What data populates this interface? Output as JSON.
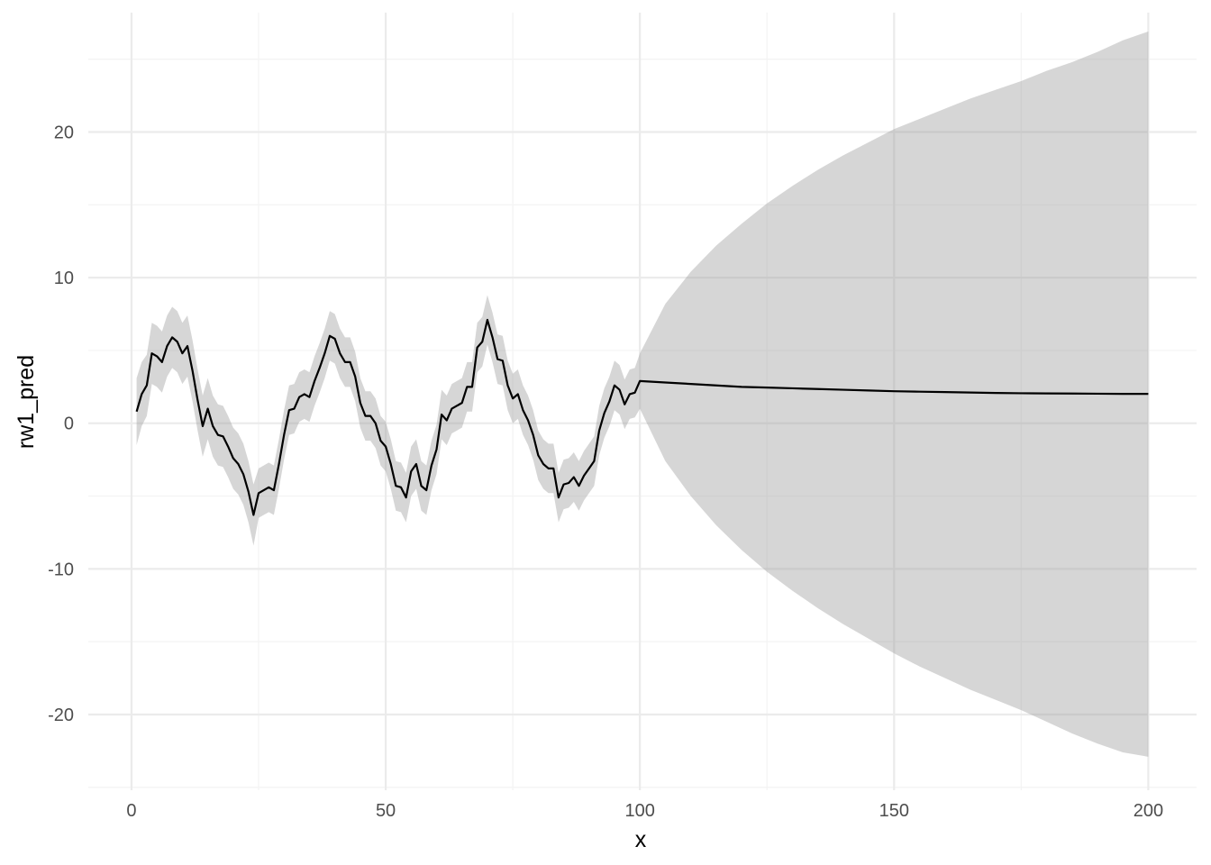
{
  "chart_data": {
    "type": "line",
    "title": "",
    "xlabel": "x",
    "ylabel": "rw1_pred",
    "xlim": [
      -8.5,
      209.5
    ],
    "ylim": [
      -25.2,
      28.2
    ],
    "xticks": [
      0,
      50,
      100,
      150,
      200
    ],
    "xtick_labels": [
      "0",
      "50",
      "100",
      "150",
      "200"
    ],
    "yticks": [
      -20,
      -10,
      0,
      10,
      20
    ],
    "ytick_labels": [
      "-20",
      "-10",
      "0",
      "10",
      "20"
    ],
    "grid": true,
    "legend": "none",
    "colors": {
      "line": "#000000",
      "ribbon": "#999999",
      "grid_major": "#ebebeb",
      "grid_minor": "#f3f3f3",
      "tick_text": "#4d4d4d"
    },
    "series": [
      {
        "x": [
          1,
          2,
          3,
          4,
          5,
          6,
          7,
          8,
          9,
          10,
          11,
          12,
          13,
          14,
          15,
          16,
          17,
          18,
          19,
          20,
          21,
          22,
          23,
          24,
          25,
          26,
          27,
          28,
          29,
          30,
          31,
          32,
          33,
          34,
          35,
          36,
          37,
          38,
          39,
          40,
          41,
          42,
          43,
          44,
          45,
          46,
          47,
          48,
          49,
          50,
          51,
          52,
          53,
          54,
          55,
          56,
          57,
          58,
          59,
          60,
          61,
          62,
          63,
          64,
          65,
          66,
          67,
          68,
          69,
          70,
          71,
          72,
          73,
          74,
          75,
          76,
          77,
          78,
          79,
          80,
          81,
          82,
          83,
          84,
          85,
          86,
          87,
          88,
          89,
          90,
          91,
          92,
          93,
          94,
          95,
          96,
          97,
          98,
          99,
          100,
          105,
          110,
          115,
          120,
          125,
          130,
          135,
          140,
          145,
          150,
          155,
          160,
          165,
          170,
          175,
          180,
          185,
          190,
          195,
          200
        ],
        "y": [
          0.8,
          2.0,
          2.6,
          4.8,
          4.6,
          4.2,
          5.3,
          5.9,
          5.6,
          4.8,
          5.3,
          3.6,
          1.6,
          -0.2,
          1.0,
          -0.2,
          -0.8,
          -0.9,
          -1.6,
          -2.4,
          -2.8,
          -3.5,
          -4.7,
          -6.3,
          -4.8,
          -4.6,
          -4.4,
          -4.6,
          -2.8,
          -0.8,
          0.9,
          1.0,
          1.8,
          2.0,
          1.8,
          2.9,
          3.8,
          4.8,
          6.0,
          5.8,
          4.8,
          4.2,
          4.2,
          3.2,
          1.4,
          0.5,
          0.5,
          0.0,
          -1.2,
          -1.6,
          -2.8,
          -4.3,
          -4.4,
          -5.1,
          -3.3,
          -2.8,
          -4.3,
          -4.6,
          -2.9,
          -1.8,
          0.6,
          0.2,
          1.0,
          1.2,
          1.4,
          2.5,
          2.5,
          5.2,
          5.6,
          7.1,
          5.9,
          4.4,
          4.3,
          2.6,
          1.7,
          2.0,
          0.9,
          0.2,
          -0.8,
          -2.2,
          -2.8,
          -3.1,
          -3.1,
          -5.1,
          -4.2,
          -4.1,
          -3.7,
          -4.3,
          -3.6,
          -3.1,
          -2.6,
          -0.5,
          0.7,
          1.5,
          2.6,
          2.3,
          1.3,
          2.0,
          2.1,
          2.9,
          2.8,
          2.7,
          2.6,
          2.5,
          2.45,
          2.4,
          2.35,
          2.3,
          2.25,
          2.2,
          2.17,
          2.14,
          2.11,
          2.08,
          2.06,
          2.05,
          2.04,
          2.03,
          2.02,
          2.02
        ],
        "lower": [
          -1.5,
          -0.2,
          0.5,
          2.7,
          2.5,
          2.1,
          3.2,
          3.8,
          3.5,
          2.7,
          3.2,
          1.5,
          -0.5,
          -2.3,
          -1.1,
          -2.3,
          -2.9,
          -3.0,
          -3.7,
          -4.5,
          -4.9,
          -5.6,
          -6.8,
          -8.4,
          -6.5,
          -6.3,
          -6.1,
          -6.3,
          -4.5,
          -2.5,
          -0.8,
          -0.7,
          0.1,
          0.3,
          0.1,
          1.2,
          2.1,
          3.1,
          4.3,
          4.1,
          3.1,
          2.5,
          2.5,
          1.5,
          -0.3,
          -1.2,
          -1.2,
          -1.7,
          -2.9,
          -3.3,
          -4.5,
          -6.0,
          -6.1,
          -6.8,
          -5.0,
          -4.5,
          -6.0,
          -6.3,
          -4.6,
          -3.5,
          -1.1,
          -1.5,
          -0.7,
          -0.5,
          -0.3,
          0.8,
          0.8,
          3.5,
          3.9,
          5.4,
          4.2,
          2.7,
          2.6,
          0.9,
          0.0,
          0.3,
          -0.8,
          -1.5,
          -2.5,
          -3.9,
          -4.5,
          -4.8,
          -4.8,
          -6.8,
          -5.9,
          -5.8,
          -5.4,
          -6.0,
          -5.3,
          -4.8,
          -4.3,
          -2.2,
          -1.0,
          -0.2,
          0.9,
          0.6,
          -0.4,
          0.3,
          0.4,
          1.0,
          -2.6,
          -5.0,
          -7.0,
          -8.7,
          -10.2,
          -11.5,
          -12.7,
          -13.8,
          -14.8,
          -15.8,
          -16.7,
          -17.5,
          -18.3,
          -19.0,
          -19.7,
          -20.5,
          -21.3,
          -22.0,
          -22.6,
          -22.9
        ],
        "upper": [
          3.1,
          4.2,
          4.7,
          6.9,
          6.7,
          6.3,
          7.4,
          8.0,
          7.7,
          6.9,
          7.4,
          5.7,
          3.7,
          1.9,
          3.1,
          1.9,
          1.3,
          1.2,
          0.5,
          -0.3,
          -0.7,
          -1.4,
          -2.6,
          -4.2,
          -3.1,
          -2.9,
          -2.7,
          -2.9,
          -1.1,
          0.9,
          2.6,
          2.7,
          3.5,
          3.7,
          3.5,
          4.6,
          5.5,
          6.5,
          7.7,
          7.5,
          6.5,
          5.9,
          5.9,
          4.9,
          3.1,
          2.2,
          2.2,
          1.7,
          0.5,
          0.1,
          -1.1,
          -2.6,
          -2.7,
          -3.4,
          -1.6,
          -1.1,
          -2.6,
          -2.9,
          -1.2,
          -0.1,
          2.3,
          1.9,
          2.7,
          2.9,
          3.1,
          4.2,
          4.2,
          6.9,
          7.3,
          8.8,
          7.6,
          6.1,
          6.0,
          4.3,
          3.4,
          3.7,
          2.6,
          1.9,
          0.9,
          -0.5,
          -1.1,
          -1.4,
          -1.4,
          -3.4,
          -2.5,
          -2.4,
          -2.0,
          -2.6,
          -1.9,
          -1.4,
          -0.9,
          1.2,
          2.4,
          3.2,
          4.3,
          4.0,
          3.0,
          3.7,
          3.8,
          4.8,
          8.2,
          10.4,
          12.2,
          13.7,
          15.1,
          16.3,
          17.4,
          18.4,
          19.3,
          20.2,
          20.9,
          21.6,
          22.3,
          22.9,
          23.5,
          24.2,
          24.8,
          25.5,
          26.3,
          26.9
        ]
      }
    ]
  }
}
